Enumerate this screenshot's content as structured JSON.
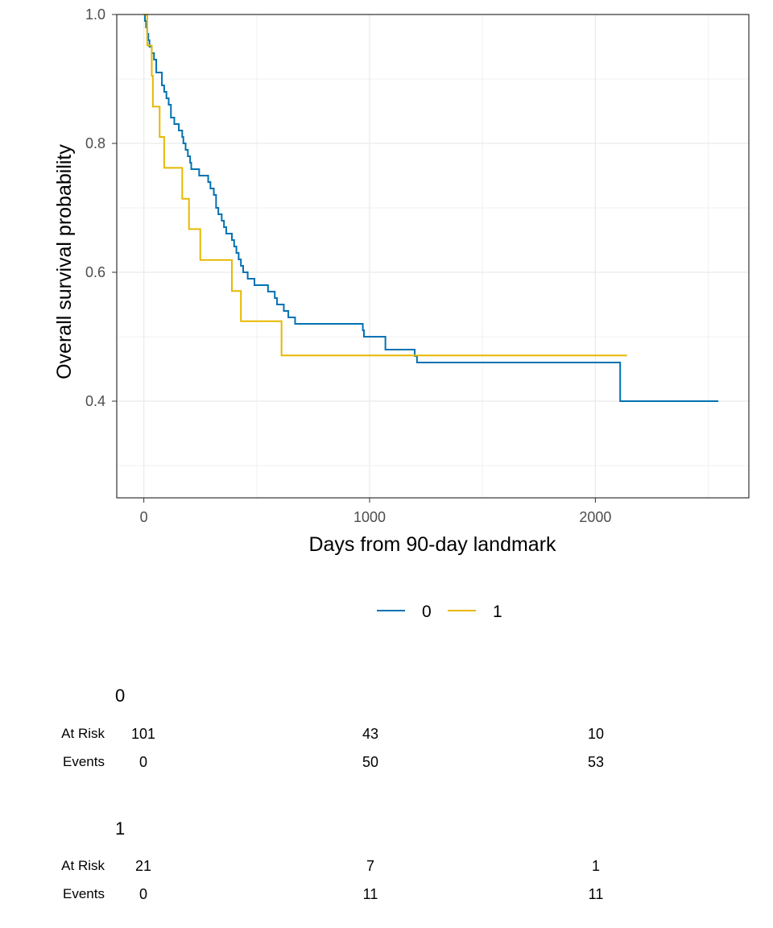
{
  "chart_data": {
    "type": "line",
    "subtype": "kaplan-meier step",
    "xlabel": "Days from 90-day landmark",
    "ylabel": "Overall survival probability",
    "xlim": [
      -120,
      2680
    ],
    "ylim": [
      0.25,
      1.0
    ],
    "x_ticks": [
      0,
      1000,
      2000
    ],
    "x_minor_ticks": [
      500,
      1500,
      2500
    ],
    "y_ticks": [
      0.4,
      0.6,
      0.8,
      1.0
    ],
    "y_tick_labels": [
      "0.4",
      "0.6",
      "0.8",
      "1.0"
    ],
    "y_minor_ticks": [
      0.3,
      0.5,
      0.7,
      0.9
    ],
    "grid": true,
    "legend_position": "bottom",
    "series": [
      {
        "name": "0",
        "color": "#0072B2",
        "points": [
          [
            0,
            1.0
          ],
          [
            5,
            0.99
          ],
          [
            10,
            0.98
          ],
          [
            15,
            0.97
          ],
          [
            20,
            0.96
          ],
          [
            25,
            0.95
          ],
          [
            35,
            0.94
          ],
          [
            45,
            0.93
          ],
          [
            55,
            0.91
          ],
          [
            80,
            0.89
          ],
          [
            90,
            0.88
          ],
          [
            100,
            0.87
          ],
          [
            110,
            0.86
          ],
          [
            120,
            0.84
          ],
          [
            135,
            0.83
          ],
          [
            155,
            0.82
          ],
          [
            170,
            0.81
          ],
          [
            175,
            0.8
          ],
          [
            185,
            0.79
          ],
          [
            195,
            0.78
          ],
          [
            205,
            0.77
          ],
          [
            210,
            0.76
          ],
          [
            245,
            0.75
          ],
          [
            285,
            0.74
          ],
          [
            295,
            0.73
          ],
          [
            310,
            0.72
          ],
          [
            320,
            0.7
          ],
          [
            330,
            0.69
          ],
          [
            345,
            0.68
          ],
          [
            355,
            0.67
          ],
          [
            365,
            0.66
          ],
          [
            390,
            0.65
          ],
          [
            400,
            0.64
          ],
          [
            410,
            0.63
          ],
          [
            420,
            0.62
          ],
          [
            430,
            0.61
          ],
          [
            440,
            0.6
          ],
          [
            460,
            0.59
          ],
          [
            490,
            0.58
          ],
          [
            550,
            0.57
          ],
          [
            580,
            0.56
          ],
          [
            590,
            0.55
          ],
          [
            620,
            0.54
          ],
          [
            640,
            0.53
          ],
          [
            670,
            0.52
          ],
          [
            970,
            0.51
          ],
          [
            975,
            0.5
          ],
          [
            1070,
            0.48
          ],
          [
            1200,
            0.47
          ],
          [
            1210,
            0.46
          ],
          [
            2110,
            0.4
          ],
          [
            2545,
            0.4
          ]
        ]
      },
      {
        "name": "1",
        "color": "#E7B800",
        "points": [
          [
            0,
            1.0
          ],
          [
            15,
            0.952
          ],
          [
            35,
            0.905
          ],
          [
            40,
            0.857
          ],
          [
            70,
            0.81
          ],
          [
            90,
            0.762
          ],
          [
            170,
            0.714
          ],
          [
            200,
            0.667
          ],
          [
            250,
            0.619
          ],
          [
            390,
            0.571
          ],
          [
            430,
            0.524
          ],
          [
            610,
            0.471
          ],
          [
            2140,
            0.471
          ]
        ]
      }
    ]
  },
  "legend": {
    "items": [
      {
        "label": "0",
        "color": "#0072B2"
      },
      {
        "label": "1",
        "color": "#E7B800"
      }
    ]
  },
  "risk_table": {
    "time_points": [
      0,
      1000,
      2000
    ],
    "groups": [
      {
        "name": "0",
        "at_risk_label": "At Risk",
        "events_label": "Events",
        "at_risk": [
          "101",
          "43",
          "10"
        ],
        "events": [
          "0",
          "50",
          "53"
        ]
      },
      {
        "name": "1",
        "at_risk_label": "At Risk",
        "events_label": "Events",
        "at_risk": [
          "21",
          "7",
          "1"
        ],
        "events": [
          "0",
          "11",
          "11"
        ]
      }
    ]
  }
}
